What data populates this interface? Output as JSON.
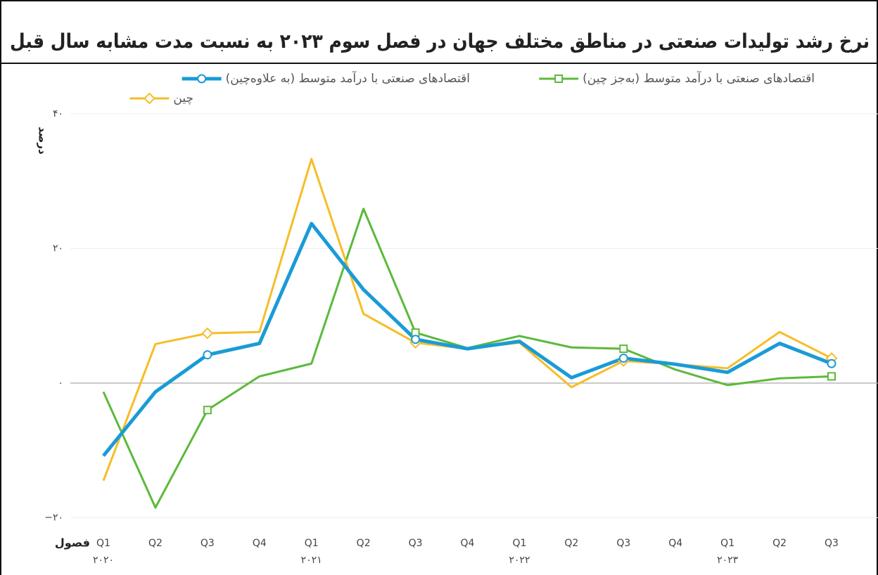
{
  "chart_data": {
    "type": "line",
    "title": "نرخ رشد تولیدات صنعتی در مناطق مختلف جهان در فصل سوم ۲۰۲۳ به نسبت مدت مشابه سال قبل",
    "ylabel": "درصد",
    "xlabel": "فصول",
    "categories": [
      "Q1",
      "Q2",
      "Q3",
      "Q4",
      "Q1",
      "Q2",
      "Q3",
      "Q4",
      "Q1",
      "Q2",
      "Q3",
      "Q4",
      "Q1",
      "Q2",
      "Q3"
    ],
    "years": [
      "۲۰۲۰",
      null,
      null,
      null,
      "۲۰۲۱",
      null,
      null,
      null,
      "۲۰۲۲",
      null,
      null,
      null,
      "۲۰۲۳",
      null,
      null
    ],
    "marker_indices": [
      2,
      6,
      10,
      14
    ],
    "series": [
      {
        "name": "اقتصادهای صنعتی با درآمد متوسط (به‌جز چین)",
        "color": "#5cb93a",
        "marker": "square",
        "width": 3,
        "values": [
          -1.3,
          -18.5,
          -4.0,
          1.0,
          2.9,
          25.9,
          7.5,
          5.2,
          7.0,
          5.3,
          5.1,
          2.0,
          -0.3,
          0.7,
          1.0
        ]
      },
      {
        "name": "چین",
        "color": "#f7bd26",
        "marker": "diamond",
        "width": 3,
        "values": [
          -14.5,
          5.8,
          7.4,
          7.6,
          33.3,
          10.3,
          6.0,
          5.1,
          6.0,
          -0.6,
          3.3,
          2.8,
          2.2,
          7.6,
          3.7
        ]
      },
      {
        "name": "اقتصادهای صنعتی با درآمد متوسط (به علاوه‌چین)",
        "color": "#1a9bd7",
        "marker": "circle",
        "width": 5,
        "values": [
          -10.8,
          -1.3,
          4.2,
          5.9,
          23.7,
          13.9,
          6.5,
          5.1,
          6.2,
          0.8,
          3.7,
          2.8,
          1.6,
          5.9,
          2.9
        ]
      }
    ],
    "ylim": [
      -20,
      40
    ],
    "yticks": [
      {
        "value": -20,
        "label": "−۲۰"
      },
      {
        "value": 0,
        "label": "۰"
      },
      {
        "value": 20,
        "label": "۲۰"
      },
      {
        "value": 40,
        "label": "۴۰"
      }
    ],
    "grid": true
  }
}
